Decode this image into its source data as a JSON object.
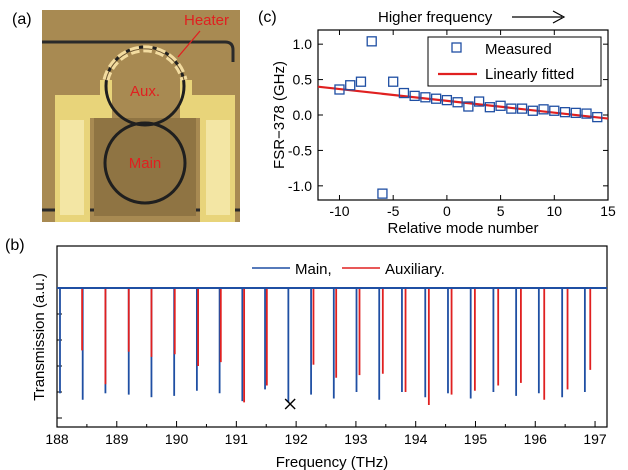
{
  "panel_labels": {
    "a": "(a)",
    "b": "(b)",
    "c": "(c)"
  },
  "micrograph": {
    "heater_label": "Heater",
    "aux_label": "Aux.",
    "main_label": "Main",
    "colors": {
      "substrate": "#a88a52",
      "electrode": "#e8d47a",
      "ring": "#1f1f1f",
      "heater": "#f3dca0",
      "label": "#e02020"
    }
  },
  "colors": {
    "main": "#1f4fa3",
    "aux": "#e02020",
    "fit": "#e02020",
    "marker": "#1f4fa3"
  },
  "chart_data": [
    {
      "type": "scatter",
      "top_annotation": "Higher frequency",
      "xlabel": "Relative mode number",
      "ylabel": "FSR−378 (GHz)",
      "xlim": [
        -12,
        15
      ],
      "ylim": [
        -1.2,
        1.2
      ],
      "xticks": [
        -10,
        -5,
        0,
        5,
        10,
        15
      ],
      "xtick_labels": [
        "-10",
        "-5",
        "0",
        "5",
        "10",
        "15"
      ],
      "yticks": [
        1.0,
        0.5,
        0.0,
        -0.5,
        -1.0
      ],
      "ytick_labels": [
        "1.0",
        "0.5",
        "0.0",
        "-0.5",
        "-1.0"
      ],
      "legend_position": "top-right",
      "series": [
        {
          "name": "Measured",
          "kind": "markers",
          "x": [
            -10,
            -9,
            -8,
            -7,
            -6,
            -5,
            -4,
            -3,
            -2,
            -1,
            0,
            1,
            2,
            3,
            4,
            5,
            6,
            7,
            8,
            9,
            10,
            11,
            12,
            13,
            14
          ],
          "y": [
            0.36,
            0.42,
            0.47,
            1.04,
            -1.11,
            0.47,
            0.31,
            0.27,
            0.25,
            0.23,
            0.21,
            0.18,
            0.12,
            0.19,
            0.11,
            0.13,
            0.09,
            0.09,
            0.06,
            0.08,
            0.06,
            0.04,
            0.03,
            0.02,
            -0.03
          ]
        },
        {
          "name": "Linearly fitted",
          "kind": "line",
          "x": [
            -12,
            15
          ],
          "y": [
            0.4,
            -0.05
          ]
        }
      ]
    },
    {
      "type": "bar",
      "xlabel": "Frequency (THz)",
      "ylabel": "Transmission (a.u.)",
      "xlim": [
        188,
        197.2
      ],
      "ylim": [
        0,
        1
      ],
      "xticks": [
        188,
        189,
        190,
        191,
        192,
        193,
        194,
        195,
        196,
        197
      ],
      "xtick_labels": [
        "188",
        "189",
        "190",
        "191",
        "192",
        "193",
        "194",
        "195",
        "196",
        "197"
      ],
      "baseline": 1.0,
      "legend_position": "top-center",
      "crossed_frequency": 191.9,
      "series": [
        {
          "name": "Main,",
          "x": [
            188.05,
            188.43,
            188.81,
            189.2,
            189.58,
            189.96,
            190.34,
            190.72,
            191.1,
            191.48,
            191.87,
            192.25,
            192.63,
            193.01,
            193.39,
            193.77,
            194.16,
            194.54,
            194.92,
            195.3,
            195.68,
            196.06,
            196.45,
            196.83,
            197.21
          ],
          "depth": [
            0.81,
            0.86,
            0.81,
            0.82,
            0.84,
            0.83,
            0.79,
            0.81,
            0.87,
            0.78,
            0.88,
            0.82,
            0.85,
            0.8,
            0.86,
            0.8,
            0.84,
            0.81,
            0.85,
            0.8,
            0.83,
            0.81,
            0.84,
            0.8,
            0.83
          ]
        },
        {
          "name": "Auxiliary.",
          "x": [
            188.42,
            188.81,
            189.2,
            189.58,
            189.97,
            190.36,
            190.74,
            191.13,
            191.51,
            191.9,
            192.29,
            192.67,
            193.06,
            193.45,
            193.83,
            194.22,
            194.6,
            194.99,
            195.38,
            195.76,
            196.15,
            196.54,
            196.92
          ],
          "depth": [
            0.48,
            0.74,
            0.49,
            0.53,
            0.51,
            0.6,
            0.57,
            0.88,
            0.75,
            0.0,
            0.59,
            0.69,
            0.67,
            0.66,
            0.8,
            0.9,
            0.82,
            0.79,
            0.75,
            0.73,
            0.86,
            0.78,
            0.63
          ]
        }
      ]
    }
  ]
}
